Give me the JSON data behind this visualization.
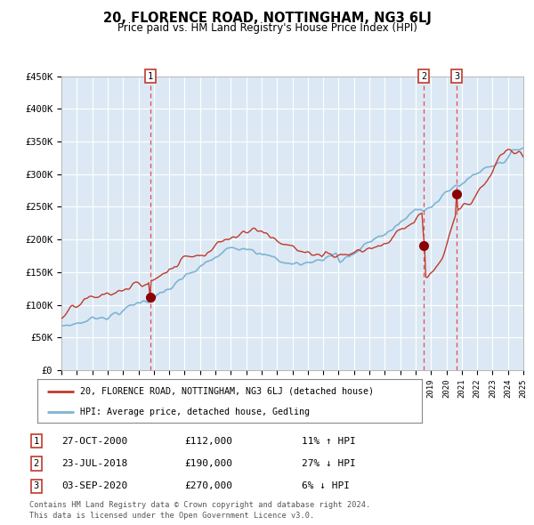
{
  "title": "20, FLORENCE ROAD, NOTTINGHAM, NG3 6LJ",
  "subtitle": "Price paid vs. HM Land Registry's House Price Index (HPI)",
  "x_start_year": 1995,
  "x_end_year": 2025,
  "y_min": 0,
  "y_max": 450000,
  "y_ticks": [
    0,
    50000,
    100000,
    150000,
    200000,
    250000,
    300000,
    350000,
    400000,
    450000
  ],
  "plot_bg_color": "#dce9f5",
  "grid_color": "#ffffff",
  "red_line_color": "#c0392b",
  "blue_line_color": "#7fb3d3",
  "sale_marker_color": "#8b0000",
  "dashed_line_color": "#e05050",
  "sales": [
    {
      "label": "1",
      "date": "27-OCT-2000",
      "price": 112000,
      "year": 2000.79
    },
    {
      "label": "2",
      "date": "23-JUL-2018",
      "price": 190000,
      "year": 2018.55
    },
    {
      "label": "3",
      "date": "03-SEP-2020",
      "price": 270000,
      "year": 2020.67
    }
  ],
  "footer_line1": "Contains HM Land Registry data © Crown copyright and database right 2024.",
  "footer_line2": "This data is licensed under the Open Government Licence v3.0.",
  "legend_line1": "20, FLORENCE ROAD, NOTTINGHAM, NG3 6LJ (detached house)",
  "legend_line2": "HPI: Average price, detached house, Gedling"
}
